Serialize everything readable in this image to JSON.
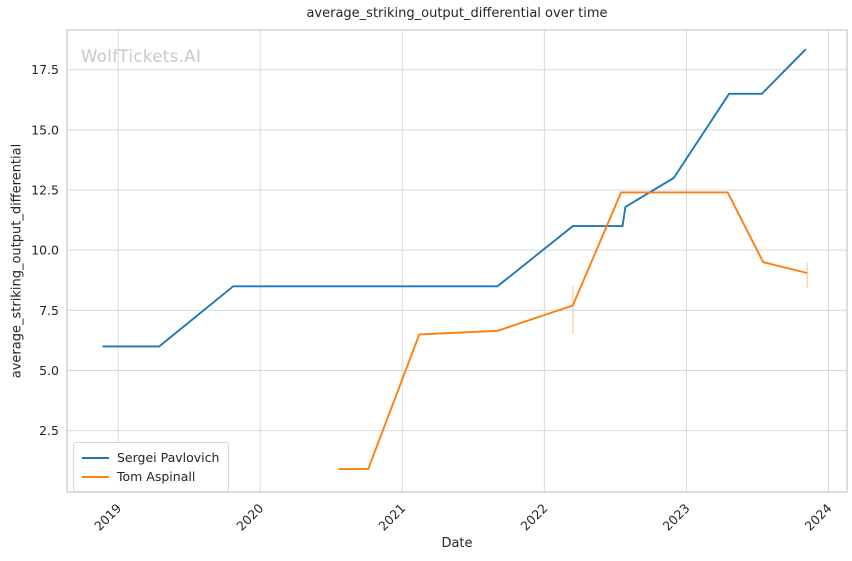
{
  "watermark": "WolfTickets.AI",
  "chart_data": {
    "type": "line",
    "title": "average_striking_output_differential over time",
    "xlabel": "Date",
    "ylabel": "average_striking_output_differential",
    "grid": true,
    "legend_position": "lower left",
    "x_range": [
      2018.64,
      2024.13
    ],
    "y_range": [
      -0.05,
      19.15
    ],
    "x_ticks": [
      {
        "value": 2019,
        "label": "2019"
      },
      {
        "value": 2020,
        "label": "2020"
      },
      {
        "value": 2021,
        "label": "2021"
      },
      {
        "value": 2022,
        "label": "2022"
      },
      {
        "value": 2023,
        "label": "2023"
      },
      {
        "value": 2024,
        "label": "2024"
      }
    ],
    "y_ticks": [
      {
        "value": 2.5,
        "label": "2.5"
      },
      {
        "value": 5.0,
        "label": "5.0"
      },
      {
        "value": 7.5,
        "label": "7.5"
      },
      {
        "value": 10.0,
        "label": "10.0"
      },
      {
        "value": 12.5,
        "label": "12.5"
      },
      {
        "value": 15.0,
        "label": "15.0"
      },
      {
        "value": 17.5,
        "label": "17.5"
      }
    ],
    "series": [
      {
        "name": "Sergei Pavlovich",
        "color": "#1f77b4",
        "points": [
          [
            2018.89,
            6.0
          ],
          [
            2019.29,
            6.0
          ],
          [
            2019.81,
            8.5
          ],
          [
            2021.67,
            8.5
          ],
          [
            2022.2,
            11.0
          ],
          [
            2022.55,
            11.0
          ],
          [
            2022.57,
            11.8
          ],
          [
            2022.91,
            13.0
          ],
          [
            2023.3,
            16.5
          ],
          [
            2023.53,
            16.5
          ],
          [
            2023.84,
            18.35
          ]
        ],
        "error_bars": []
      },
      {
        "name": "Tom Aspinall",
        "color": "#ff7f0e",
        "points": [
          [
            2020.55,
            0.9
          ],
          [
            2020.76,
            0.9
          ],
          [
            2021.12,
            6.5
          ],
          [
            2021.67,
            6.65
          ],
          [
            2022.2,
            7.7
          ],
          [
            2022.54,
            12.4
          ],
          [
            2023.29,
            12.4
          ],
          [
            2023.54,
            9.5
          ],
          [
            2023.85,
            9.05
          ]
        ],
        "error_bars": [
          {
            "x": 2022.2,
            "y_low": 6.5,
            "y_high": 8.5
          },
          {
            "x": 2023.85,
            "y_low": 8.45,
            "y_high": 9.5
          }
        ]
      }
    ]
  },
  "legend": {
    "entries": [
      {
        "label": "Sergei Pavlovich"
      },
      {
        "label": "Tom Aspinall"
      }
    ]
  }
}
